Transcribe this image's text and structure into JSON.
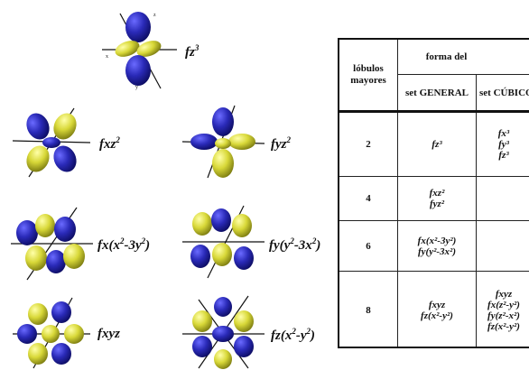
{
  "orbitals": [
    {
      "id": "fz3",
      "label": "fz³"
    },
    {
      "id": "fxz2",
      "label": "fxz²"
    },
    {
      "id": "fyz2",
      "label": "fyz²"
    },
    {
      "id": "fx_x2-3y2",
      "label": "fx(x²-3y²)"
    },
    {
      "id": "fy_y2-3x2",
      "label": "fy(y²-3x²)"
    },
    {
      "id": "fxyz",
      "label": "fxyz"
    },
    {
      "id": "fz_x2-y2",
      "label": "fz(x²-y²)"
    }
  ],
  "table": {
    "header_col1": "lóbulos mayores",
    "header_group": "forma del",
    "header_general": "set GENERAL",
    "header_cubic": "set CÚBICO",
    "rows": [
      {
        "lobes": "2",
        "general": [
          "fz³"
        ],
        "cubic": [
          "fx³",
          "fy³",
          "fz³"
        ]
      },
      {
        "lobes": "4",
        "general": [
          "fxz²",
          "fyz²"
        ],
        "cubic": []
      },
      {
        "lobes": "6",
        "general": [
          "fx(x²-3y²)",
          "fy(y²-3x²)"
        ],
        "cubic": []
      },
      {
        "lobes": "8",
        "general": [
          "fxyz",
          "fz(x²-y²)"
        ],
        "cubic": [
          "fxyz",
          "fx(z²-y²)",
          "fy(z²-x²)",
          "fz(x²-y²)"
        ]
      }
    ]
  },
  "colors": {
    "lobe_a": "#2a2ab8",
    "lobe_b": "#d8d838",
    "axis": "#111111"
  },
  "axis_labels": [
    "x",
    "y",
    "z"
  ]
}
